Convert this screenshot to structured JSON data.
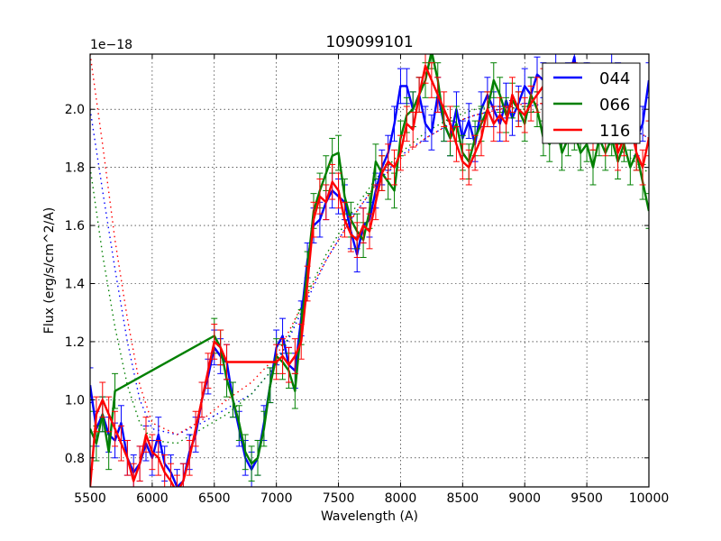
{
  "chart_data": {
    "type": "line",
    "title": "109099101",
    "xlabel": "Wavelength (A)",
    "ylabel": "Flux (erg/s/cm^2/A)",
    "offset_text": "1e−18",
    "xlim": [
      5500,
      10000
    ],
    "ylim": [
      0.7,
      2.19
    ],
    "y_scale_factor": 1e-18,
    "grid": true,
    "legend_position": "upper right",
    "xticks": [
      "5500",
      "6000",
      "6500",
      "7000",
      "7500",
      "8000",
      "8500",
      "9000",
      "9500",
      "10000"
    ],
    "yticks": [
      "0.8",
      "1.0",
      "1.2",
      "1.4",
      "1.6",
      "1.8",
      "2.0"
    ],
    "series": [
      {
        "name": "044",
        "color": "#0000ff",
        "x": [
          5500,
          5550,
          5600,
          5650,
          5700,
          5750,
          5800,
          5850,
          5900,
          5950,
          6000,
          6050,
          6100,
          6150,
          6200,
          6250,
          6300,
          6350,
          6400,
          6450,
          6500,
          6550,
          6600,
          6650,
          6700,
          6750,
          6800,
          6850,
          6900,
          6950,
          7000,
          7050,
          7100,
          7150,
          7200,
          7250,
          7300,
          7350,
          7400,
          7450,
          7500,
          7550,
          7600,
          7650,
          7700,
          7750,
          7800,
          7850,
          7900,
          7950,
          8000,
          8050,
          8100,
          8150,
          8200,
          8250,
          8300,
          8350,
          8400,
          8450,
          8500,
          8550,
          8600,
          8650,
          8700,
          8750,
          8800,
          8850,
          8900,
          8950,
          9000,
          9050,
          9100,
          9150,
          9200,
          9250,
          9300,
          9350,
          9400,
          9450,
          9500,
          9550,
          9600,
          9650,
          9700,
          9750,
          9800,
          9850,
          9900,
          9950,
          10000
        ],
        "y": [
          1.05,
          0.9,
          0.95,
          0.88,
          0.86,
          0.92,
          0.8,
          0.75,
          0.78,
          0.85,
          0.8,
          0.88,
          0.78,
          0.75,
          0.7,
          0.72,
          0.82,
          0.88,
          1.0,
          1.08,
          1.18,
          1.15,
          1.13,
          1.0,
          0.9,
          0.8,
          0.76,
          0.8,
          0.92,
          1.05,
          1.18,
          1.22,
          1.12,
          1.1,
          1.28,
          1.48,
          1.6,
          1.62,
          1.68,
          1.72,
          1.7,
          1.68,
          1.58,
          1.5,
          1.6,
          1.62,
          1.72,
          1.8,
          1.85,
          1.95,
          2.08,
          2.08,
          2.0,
          2.05,
          1.95,
          1.92,
          2.05,
          1.95,
          1.9,
          2.0,
          1.9,
          1.96,
          1.88,
          2.0,
          2.05,
          2.0,
          1.95,
          2.03,
          1.97,
          2.02,
          2.08,
          2.05,
          2.12,
          2.1,
          2.05,
          2.15,
          2.05,
          2.1,
          2.18,
          2.0,
          2.1,
          2.0,
          2.05,
          1.95,
          2.15,
          2.1,
          1.95,
          2.05,
          1.9,
          1.95,
          2.1
        ]
      },
      {
        "name": "066",
        "color": "#008000",
        "x": [
          5500,
          5550,
          5600,
          5650,
          5700,
          6500,
          6550,
          6600,
          6650,
          6700,
          6750,
          6800,
          6850,
          6900,
          6950,
          7000,
          7050,
          7100,
          7150,
          7200,
          7250,
          7300,
          7350,
          7400,
          7450,
          7500,
          7550,
          7600,
          7650,
          7700,
          7750,
          7800,
          7850,
          7900,
          7950,
          8000,
          8050,
          8100,
          8150,
          8200,
          8250,
          8300,
          8350,
          8400,
          8450,
          8500,
          8550,
          8600,
          8650,
          8700,
          8750,
          8800,
          8850,
          8900,
          8950,
          9000,
          9050,
          9100,
          9150,
          9200,
          9250,
          9300,
          9350,
          9400,
          9450,
          9500,
          9550,
          9600,
          9650,
          9700,
          9750,
          9800,
          9850,
          9900,
          9950,
          10000
        ],
        "y": [
          0.9,
          0.85,
          0.95,
          0.82,
          1.03,
          1.22,
          1.18,
          1.07,
          1.0,
          0.92,
          0.82,
          0.78,
          0.8,
          0.9,
          1.05,
          1.15,
          1.13,
          1.1,
          1.03,
          1.25,
          1.45,
          1.65,
          1.72,
          1.78,
          1.84,
          1.85,
          1.7,
          1.62,
          1.58,
          1.55,
          1.65,
          1.82,
          1.78,
          1.75,
          1.72,
          1.9,
          1.98,
          2.0,
          2.05,
          2.1,
          2.2,
          2.1,
          1.95,
          1.9,
          1.95,
          1.85,
          1.82,
          1.9,
          1.95,
          2.0,
          2.1,
          2.05,
          1.98,
          2.03,
          2.0,
          1.95,
          2.05,
          2.0,
          1.9,
          1.88,
          1.95,
          1.85,
          1.9,
          1.92,
          1.85,
          1.88,
          1.8,
          1.9,
          1.85,
          1.9,
          1.82,
          1.88,
          1.8,
          1.85,
          1.75,
          1.65
        ]
      },
      {
        "name": "116",
        "color": "#ff0000",
        "x": [
          5500,
          5550,
          5600,
          5650,
          5700,
          5750,
          5800,
          5850,
          5900,
          5950,
          6000,
          6050,
          6100,
          6150,
          6200,
          6250,
          6300,
          6350,
          6400,
          6450,
          6500,
          6550,
          6600,
          7000,
          7050,
          7100,
          7150,
          7200,
          7250,
          7300,
          7350,
          7400,
          7450,
          7500,
          7550,
          7600,
          7650,
          7700,
          7750,
          7800,
          7850,
          7900,
          7950,
          8000,
          8050,
          8100,
          8150,
          8200,
          8250,
          8300,
          8350,
          8400,
          8450,
          8500,
          8550,
          8600,
          8650,
          8700,
          8750,
          8800,
          8850,
          8900,
          8950,
          9000,
          9050,
          9100,
          9150,
          9200,
          9250,
          9300,
          9350,
          9400,
          9450,
          9500,
          9550,
          9600,
          9650,
          9700,
          9750,
          9800,
          9850,
          9900,
          9950,
          10000
        ],
        "y": [
          0.7,
          0.95,
          1.0,
          0.95,
          0.9,
          0.85,
          0.8,
          0.72,
          0.78,
          0.88,
          0.82,
          0.8,
          0.75,
          0.72,
          0.68,
          0.72,
          0.8,
          0.9,
          1.0,
          1.1,
          1.2,
          1.18,
          1.13,
          1.13,
          1.15,
          1.12,
          1.15,
          1.2,
          1.4,
          1.62,
          1.7,
          1.68,
          1.75,
          1.72,
          1.62,
          1.57,
          1.55,
          1.6,
          1.58,
          1.68,
          1.78,
          1.82,
          1.8,
          1.85,
          1.95,
          1.93,
          2.05,
          2.15,
          2.1,
          2.05,
          2.0,
          1.95,
          1.88,
          1.82,
          1.8,
          1.85,
          1.9,
          2.0,
          1.95,
          1.98,
          1.95,
          2.05,
          2.0,
          1.98,
          2.02,
          2.05,
          2.08,
          2.0,
          1.95,
          2.05,
          2.0,
          2.1,
          2.0,
          1.95,
          1.92,
          2.0,
          1.9,
          1.95,
          1.85,
          1.9,
          1.95,
          1.85,
          1.8,
          1.9
        ]
      }
    ],
    "model_curves": [
      {
        "name": "044-fit",
        "color": "#0000ff",
        "style": "dotted",
        "x": [
          5500,
          5600,
          5700,
          5800,
          5900,
          6000,
          6200,
          6400,
          6600,
          6800,
          7000,
          7200,
          7400,
          7600,
          7800,
          8000,
          8200,
          8400,
          8600,
          8800,
          9000,
          9200,
          9400,
          9600,
          9800,
          10000
        ],
        "y": [
          2.0,
          1.72,
          1.45,
          1.2,
          1.0,
          0.9,
          0.88,
          0.92,
          0.97,
          1.02,
          1.12,
          1.3,
          1.48,
          1.62,
          1.74,
          1.84,
          1.9,
          1.95,
          1.98,
          2.0,
          2.01,
          2.02,
          2.0,
          1.98,
          1.95,
          1.9
        ]
      },
      {
        "name": "066-fit",
        "color": "#008000",
        "style": "dotted",
        "x": [
          5500,
          5600,
          5700,
          5800,
          5900,
          6000,
          6200,
          6400,
          6600,
          6800,
          7000,
          7200,
          7400,
          7600,
          7800,
          8000,
          8200,
          8400,
          8600,
          8800,
          9000,
          9200,
          9400,
          9600,
          9800,
          10000
        ],
        "y": [
          1.8,
          1.5,
          1.25,
          1.05,
          0.92,
          0.86,
          0.85,
          0.9,
          0.95,
          1.02,
          1.12,
          1.32,
          1.5,
          1.64,
          1.76,
          1.85,
          1.92,
          1.97,
          2.0,
          2.01,
          2.0,
          1.98,
          1.95,
          1.9,
          1.85,
          1.78
        ]
      },
      {
        "name": "116-fit",
        "color": "#ff0000",
        "style": "dotted",
        "x": [
          5500,
          5600,
          5700,
          5800,
          5900,
          6000,
          6200,
          6400,
          6600,
          6800,
          7000,
          7200,
          7400,
          7600,
          7800,
          8000,
          8200,
          8400,
          8600,
          8800,
          9000,
          9200,
          9400,
          9600,
          9800,
          10000
        ],
        "y": [
          2.19,
          1.88,
          1.55,
          1.28,
          1.05,
          0.92,
          0.88,
          0.93,
          1.0,
          1.06,
          1.15,
          1.32,
          1.48,
          1.62,
          1.74,
          1.83,
          1.9,
          1.95,
          1.98,
          2.0,
          2.02,
          2.02,
          2.0,
          1.98,
          1.95,
          1.9
        ]
      }
    ],
    "error_bar_size": 0.06
  }
}
